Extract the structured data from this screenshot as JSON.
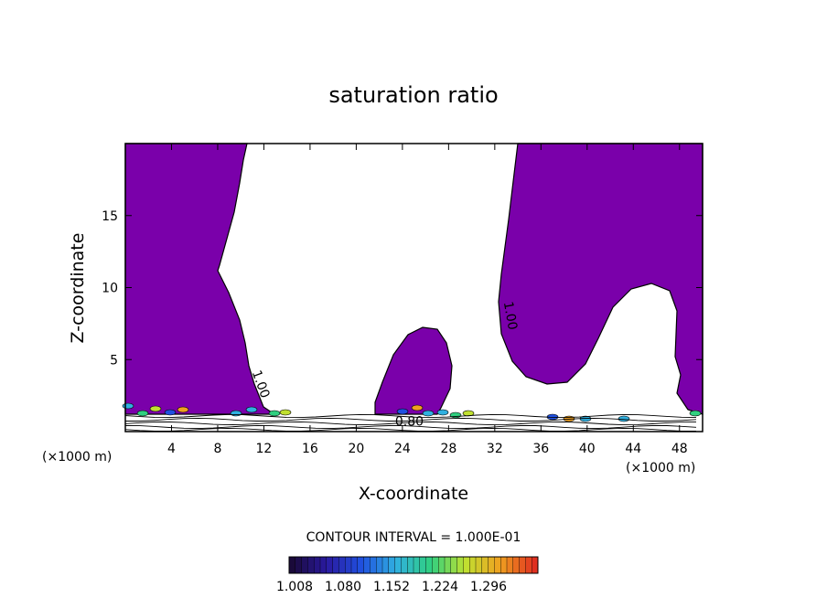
{
  "chart_data": {
    "type": "contour",
    "title": "saturation ratio",
    "xlabel": "X-coordinate",
    "ylabel": "Z-coordinate",
    "x_unit": "(×1000 m)",
    "y_unit": "(×1000 m)",
    "xlim": [
      0,
      50
    ],
    "ylim": [
      0,
      20
    ],
    "x_ticks": [
      4,
      8,
      12,
      16,
      20,
      24,
      28,
      32,
      36,
      40,
      44,
      48
    ],
    "y_ticks": [
      5,
      10,
      15
    ],
    "contour_labels": [
      {
        "text": "1.00",
        "x": 11.4,
        "z": 3.2,
        "angle": 70
      },
      {
        "text": "1.00",
        "x": 33.0,
        "z": 8.0,
        "angle": 80
      },
      {
        "text": "0.80",
        "x": 24.6,
        "z": 0.4,
        "angle": 0
      }
    ],
    "regions": [
      {
        "name": "left-saturated",
        "color": "#7a00aa"
      },
      {
        "name": "middle-saturated",
        "color": "#7a00aa"
      },
      {
        "name": "right-saturated",
        "color": "#7a00aa"
      }
    ],
    "contour_interval_text": "CONTOUR INTERVAL = 1.000E-01",
    "colorbar": {
      "ticks": [
        "1.008",
        "1.080",
        "1.152",
        "1.224",
        "1.296"
      ],
      "colors": [
        "#1a0a3a",
        "#2a1aa0",
        "#2050e0",
        "#30b0e0",
        "#30d080",
        "#c0e030",
        "#f0a020",
        "#e03020"
      ]
    },
    "fill_color": "#7a00aa"
  }
}
